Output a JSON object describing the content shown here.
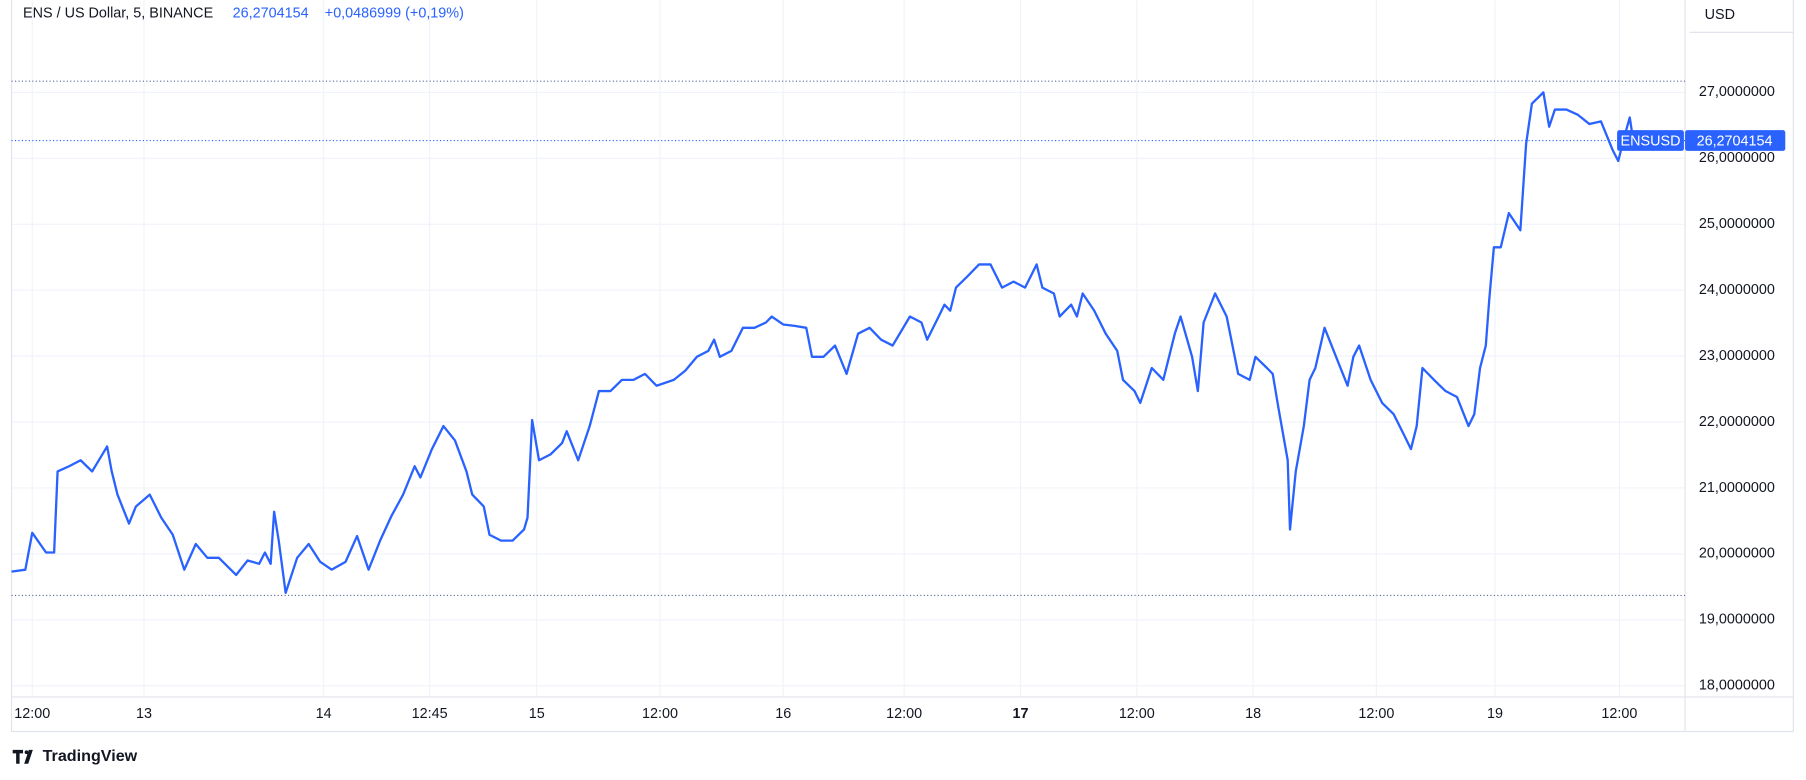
{
  "chart_data": {
    "type": "line",
    "title": "ENS / US Dollar, 5, BINANCE",
    "last_price": {
      "value": 26.2704154,
      "label": "26,2704154"
    },
    "change": "+0,0486999 (+0,19%)",
    "currency": "USD",
    "brand": "TradingView",
    "grid": true,
    "xlim": [
      10,
      1463
    ],
    "ylim": [
      17.83,
      28.4
    ],
    "xticks": [
      {
        "value": 28,
        "label": "12:00"
      },
      {
        "value": 125,
        "label": "13"
      },
      {
        "value": 281,
        "label": "14"
      },
      {
        "value": 373,
        "label": "12:45"
      },
      {
        "value": 466,
        "label": "15"
      },
      {
        "value": 573,
        "label": "12:00"
      },
      {
        "value": 680,
        "label": "16"
      },
      {
        "value": 785,
        "label": "12:00"
      },
      {
        "value": 886,
        "label": "17",
        "weight": "bold"
      },
      {
        "value": 987,
        "label": "12:00"
      },
      {
        "value": 1088,
        "label": "18"
      },
      {
        "value": 1195,
        "label": "12:00"
      },
      {
        "value": 1298,
        "label": "19"
      },
      {
        "value": 1406,
        "label": "12:00"
      }
    ],
    "yticks": [
      {
        "value": 18,
        "label": "18,0000000"
      },
      {
        "value": 19,
        "label": "19,0000000"
      },
      {
        "value": 20,
        "label": "20,0000000"
      },
      {
        "value": 21,
        "label": "21,0000000"
      },
      {
        "value": 22,
        "label": "22,0000000"
      },
      {
        "value": 23,
        "label": "23,0000000"
      },
      {
        "value": 24,
        "label": "24,0000000"
      },
      {
        "value": 25,
        "label": "25,0000000"
      },
      {
        "value": 26,
        "label": "26,0000000"
      },
      {
        "value": 27,
        "label": "27,0000000"
      }
    ],
    "reference_lines": [
      27.17,
      19.37
    ],
    "x": [
      10,
      22,
      28,
      40,
      47,
      50,
      60,
      70,
      80,
      93,
      97,
      102,
      112,
      118,
      130,
      140,
      150,
      160,
      170,
      180,
      190,
      205,
      215,
      225,
      230,
      235,
      238,
      242,
      248,
      258,
      268,
      278,
      288,
      300,
      310,
      320,
      330,
      340,
      350,
      360,
      365,
      375,
      385,
      395,
      405,
      410,
      420,
      425,
      435,
      445,
      455,
      458,
      462,
      468,
      478,
      488,
      492,
      502,
      512,
      520,
      530,
      540,
      550,
      560,
      570,
      585,
      595,
      605,
      615,
      620,
      625,
      635,
      645,
      655,
      665,
      670,
      680,
      690,
      700,
      705,
      715,
      725,
      735,
      745,
      755,
      765,
      775,
      790,
      800,
      805,
      815,
      820,
      825,
      830,
      840,
      850,
      860,
      870,
      880,
      890,
      900,
      905,
      915,
      920,
      930,
      935,
      940,
      950,
      960,
      970,
      975,
      985,
      990,
      1000,
      1010,
      1020,
      1025,
      1035,
      1040,
      1045,
      1055,
      1065,
      1075,
      1085,
      1090,
      1100,
      1105,
      1110,
      1118,
      1120,
      1125,
      1132,
      1137,
      1142,
      1150,
      1160,
      1170,
      1175,
      1180,
      1190,
      1200,
      1210,
      1220,
      1225,
      1230,
      1235,
      1245,
      1255,
      1265,
      1275,
      1280,
      1285,
      1290,
      1293,
      1297,
      1303,
      1310,
      1320,
      1325,
      1330,
      1340,
      1345,
      1350,
      1360,
      1370,
      1380,
      1390,
      1400,
      1405,
      1410,
      1415,
      1418
    ],
    "series": [
      {
        "name": "ENSUSD",
        "color": "#2962ff",
        "values": [
          19.73,
          19.76,
          20.32,
          20.02,
          20.02,
          21.25,
          21.33,
          21.42,
          21.25,
          21.63,
          21.25,
          20.9,
          20.46,
          20.72,
          20.9,
          20.55,
          20.29,
          19.76,
          20.15,
          19.94,
          19.94,
          19.68,
          19.9,
          19.85,
          20.02,
          19.85,
          20.64,
          20.2,
          19.41,
          19.94,
          20.15,
          19.88,
          19.76,
          19.88,
          20.27,
          19.76,
          20.2,
          20.58,
          20.9,
          21.33,
          21.16,
          21.59,
          21.94,
          21.72,
          21.25,
          20.9,
          20.72,
          20.29,
          20.2,
          20.2,
          20.37,
          20.55,
          22.03,
          21.42,
          21.51,
          21.68,
          21.86,
          21.42,
          21.94,
          22.47,
          22.47,
          22.64,
          22.64,
          22.73,
          22.55,
          22.64,
          22.78,
          22.99,
          23.08,
          23.25,
          22.99,
          23.08,
          23.43,
          23.43,
          23.51,
          23.6,
          23.48,
          23.46,
          23.43,
          22.99,
          22.99,
          23.16,
          22.73,
          23.34,
          23.43,
          23.25,
          23.16,
          23.6,
          23.51,
          23.25,
          23.6,
          23.78,
          23.69,
          24.04,
          24.21,
          24.39,
          24.39,
          24.04,
          24.13,
          24.04,
          24.39,
          24.04,
          23.95,
          23.6,
          23.78,
          23.6,
          23.95,
          23.69,
          23.34,
          23.08,
          22.64,
          22.47,
          22.29,
          22.82,
          22.64,
          23.34,
          23.6,
          22.99,
          22.47,
          23.51,
          23.95,
          23.6,
          22.73,
          22.64,
          22.99,
          22.82,
          22.73,
          22.21,
          21.42,
          20.37,
          21.25,
          21.94,
          22.64,
          22.82,
          23.43,
          22.99,
          22.55,
          22.99,
          23.16,
          22.64,
          22.29,
          22.12,
          21.77,
          21.59,
          21.94,
          22.82,
          22.64,
          22.47,
          22.38,
          21.94,
          22.12,
          22.82,
          23.16,
          23.86,
          24.65,
          24.65,
          25.17,
          24.91,
          26.22,
          26.83,
          27.0,
          26.48,
          26.74,
          26.74,
          26.66,
          26.52,
          26.56,
          26.13,
          25.96,
          26.31,
          26.62,
          26.27
        ]
      }
    ]
  }
}
